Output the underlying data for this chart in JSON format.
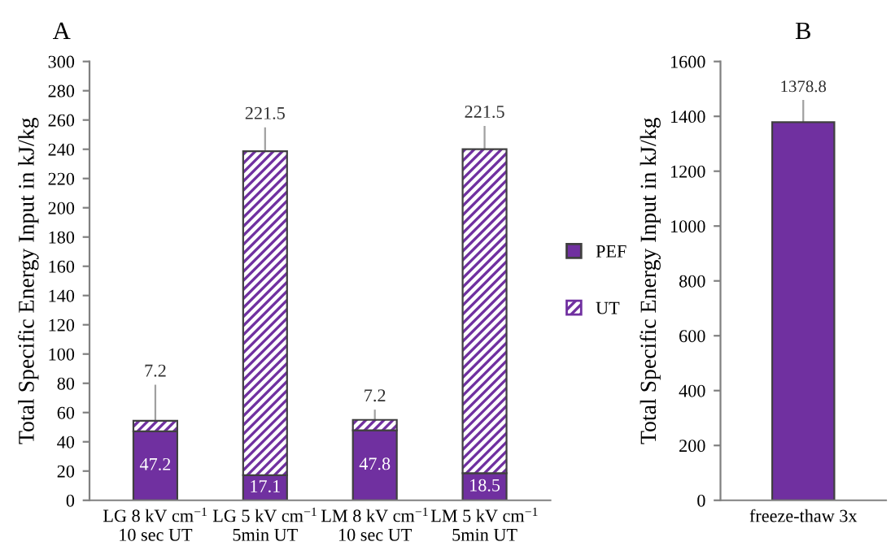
{
  "chart_data": [
    {
      "type": "bar",
      "title": "A",
      "ylabel": "Total Specific Energy Input in kJ/kg",
      "stacked": true,
      "categories": [
        "LG 8 kV cm$^{−1}$\n10 sec UT",
        "LG 5 kV cm$^{−1}$\n5min UT",
        "LM 8 kV cm$^{−1}$\n10 sec UT",
        "LM 5 kV cm$^{−1}$\n5min UT"
      ],
      "series": [
        {
          "name": "PEF",
          "color": "#7030a0",
          "values": [
            47.2,
            17.1,
            47.8,
            18.5
          ]
        },
        {
          "name": "UT",
          "color": "#7030a0",
          "values": [
            7.2,
            221.5,
            7.2,
            221.5
          ],
          "errors": [
            [
              54.4,
              79
            ],
            [
              238.6,
              255
            ],
            [
              55,
              62
            ],
            [
              240,
              256
            ]
          ]
        }
      ],
      "ylim": [
        0,
        300
      ],
      "yticks": [
        0,
        20,
        40,
        60,
        80,
        100,
        120,
        140,
        160,
        180,
        200,
        220,
        240,
        260,
        280,
        300
      ],
      "data_labels": true,
      "legend": "right",
      "grid": false
    },
    {
      "type": "bar",
      "title": "B",
      "ylabel": "Total Specific Energy Input in kJ/kg",
      "categories": [
        "freeze-thaw 3x"
      ],
      "series": [
        {
          "color": "#7030a0",
          "values": [
            1378.8
          ],
          "errors": [
            [
              1378.8,
              1460
            ]
          ]
        }
      ],
      "ylim": [
        0,
        1600
      ],
      "yticks": [
        0,
        200,
        400,
        600,
        800,
        1000,
        1200,
        1400,
        1600
      ],
      "data_labels": true,
      "grid": false
    }
  ]
}
